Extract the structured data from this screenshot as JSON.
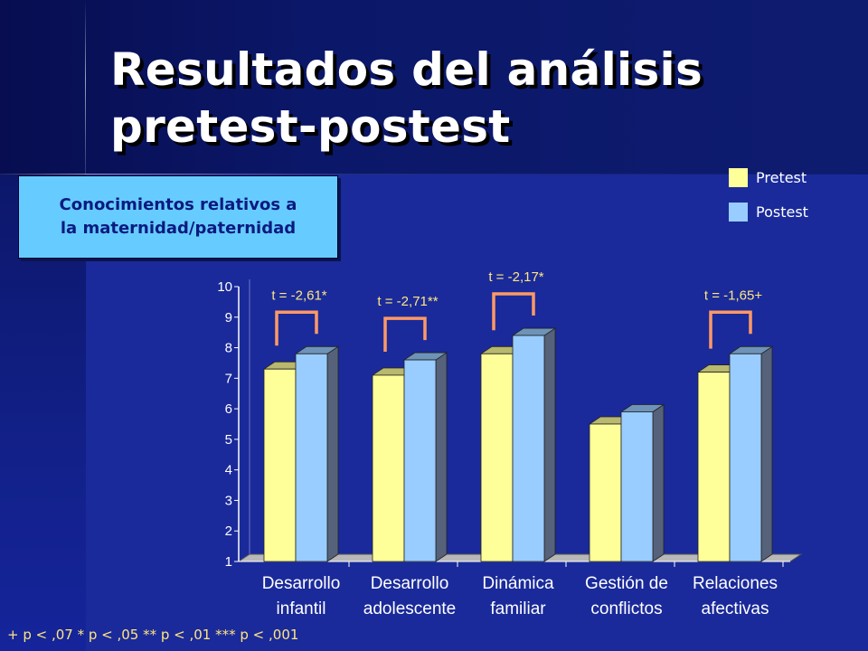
{
  "slide": {
    "title_line1": "Resultados del análisis",
    "title_line2": "pretest-postest",
    "subtitle_line1": "Conocimientos relativos a",
    "subtitle_line2": "la maternidad/paternidad",
    "footnote": "+ p < ,07   * p < ,05   ** p < ,01   *** p < ,001"
  },
  "colors": {
    "pretest": "#ffff99",
    "postest": "#99ccff",
    "annotation": "#ff9966",
    "annotation_text": "#ffe680"
  },
  "chart_data": {
    "type": "bar",
    "categories": [
      [
        "Desarrollo",
        "infantil"
      ],
      [
        "Desarrollo",
        "adolescente"
      ],
      [
        "Dinámica",
        "familiar"
      ],
      [
        "Gestión de",
        "conflictos"
      ],
      [
        "Relaciones",
        "afectivas"
      ]
    ],
    "series": [
      {
        "name": "Pretest",
        "values": [
          7.3,
          7.1,
          7.8,
          5.5,
          7.2
        ]
      },
      {
        "name": "Postest",
        "values": [
          7.8,
          7.6,
          8.4,
          5.9,
          7.8
        ]
      }
    ],
    "ylim": [
      1,
      10
    ],
    "yticks": [
      "1",
      "2",
      "3",
      "4",
      "5",
      "6",
      "7",
      "8",
      "9",
      "10"
    ],
    "legend": "top-right",
    "annotations": [
      {
        "category": 0,
        "text": "t = -2,61*"
      },
      {
        "category": 1,
        "text": "t = -2,71**"
      },
      {
        "category": 2,
        "text": "t = -2,17*"
      },
      {
        "category": 4,
        "text": "t = -1,65+"
      }
    ]
  }
}
